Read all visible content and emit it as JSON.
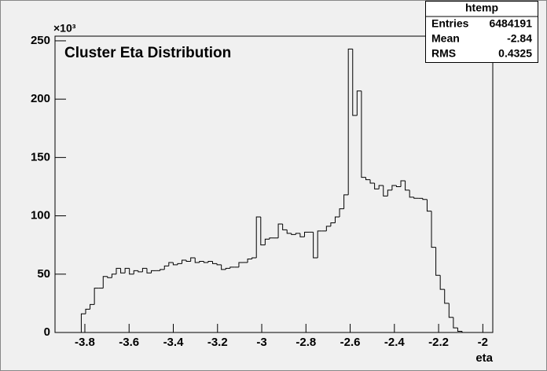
{
  "chart_data": {
    "type": "histogram",
    "title": "Cluster Eta Distribution",
    "x_label": "eta",
    "y_multiplier": "×10³",
    "stats": {
      "name": "htemp",
      "rows": [
        [
          "Entries",
          "6484191"
        ],
        [
          "Mean",
          "-2.84"
        ],
        [
          "RMS",
          "0.4325"
        ]
      ]
    },
    "color": "#000000",
    "xlim": [
      -3.935,
      -1.955
    ],
    "ylim": [
      0,
      254
    ],
    "xticks": [
      -3.8,
      -3.6,
      -3.4,
      -3.2,
      -3,
      -2.8,
      -2.6,
      -2.4,
      -2.2,
      -2
    ],
    "yticks": [
      0,
      50,
      100,
      150,
      200,
      250
    ],
    "counts": [
      0,
      0,
      0,
      0,
      0,
      0,
      16,
      20,
      24,
      38,
      38,
      48,
      47,
      50,
      55,
      51,
      55,
      50,
      53,
      52,
      55,
      51,
      53,
      53,
      54,
      57,
      60,
      58,
      59,
      62,
      61,
      64,
      60,
      61,
      60,
      61,
      59,
      58,
      54,
      55,
      56,
      56,
      60,
      60,
      63,
      64,
      99,
      75,
      80,
      81,
      81,
      93,
      88,
      85,
      84,
      85,
      82,
      86,
      86,
      64,
      87,
      87,
      91,
      94,
      99,
      106,
      118,
      243,
      186,
      207,
      133,
      131,
      128,
      123,
      126,
      117,
      122,
      126,
      125,
      130,
      122,
      116,
      115,
      115,
      114,
      104,
      73,
      49,
      37,
      25,
      13,
      4,
      1,
      0,
      0,
      0,
      0,
      0,
      0,
      0
    ]
  }
}
